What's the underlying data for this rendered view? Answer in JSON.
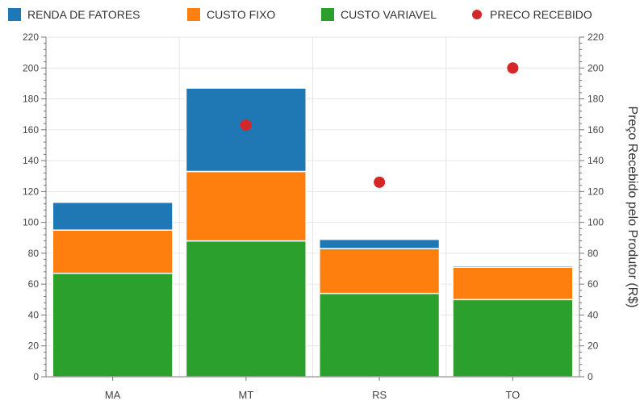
{
  "chart_data": {
    "type": "bar",
    "stacked": true,
    "title": "",
    "xlabel": "",
    "ylabel": "",
    "y2label": "Preço Recebido pelo Produtor (R$)",
    "categories": [
      "MA",
      "MT",
      "RS",
      "TO"
    ],
    "series": [
      {
        "name": "CUSTO VARIAVEL",
        "color": "#2ca02c",
        "values": [
          67,
          88,
          54,
          50
        ]
      },
      {
        "name": "CUSTO FIXO",
        "color": "#ff7f0e",
        "values": [
          28,
          45,
          29,
          21
        ]
      },
      {
        "name": "RENDA DE FATORES",
        "color": "#1f77b4",
        "values": [
          18,
          54,
          6,
          1
        ]
      }
    ],
    "points": {
      "name": "PRECO RECEBIDO",
      "color": "#d62728",
      "values": [
        null,
        163,
        126,
        200
      ]
    },
    "legend_order": [
      "RENDA DE FATORES",
      "CUSTO FIXO",
      "CUSTO VARIAVEL",
      "PRECO RECEBIDO"
    ],
    "ylim": [
      0,
      220
    ],
    "y2lim": [
      0,
      220
    ],
    "yticks": [
      0,
      20,
      40,
      60,
      80,
      100,
      120,
      140,
      160,
      180,
      200,
      220
    ],
    "legend_position": "top",
    "grid": true
  }
}
